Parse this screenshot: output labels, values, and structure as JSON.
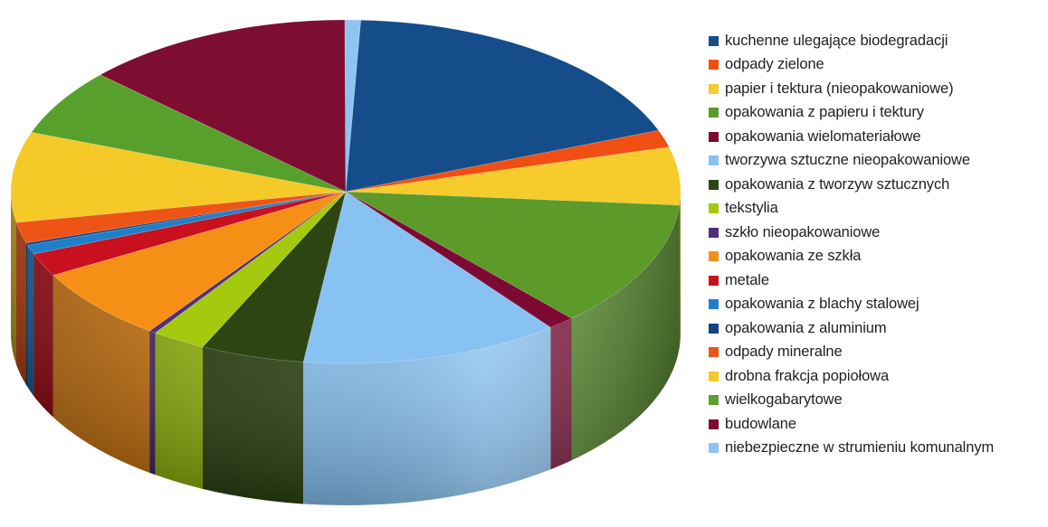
{
  "chart_data": {
    "type": "pie",
    "variant": "3d",
    "title": "",
    "legend_position": "right",
    "categories": [
      "kuchenne ulegające biodegradacji",
      "odpady zielone",
      "papier i tektura (nieopakowaniowe)",
      "opakowania z papieru i tektury",
      "opakowania wielomateriałowe",
      "tworzywa sztuczne nieopakowaniowe",
      "opakowania z tworzyw sztucznych",
      "tekstylia",
      "szkło nieopakowaniowe",
      "opakowania ze szkła",
      "metale",
      "opakowania z blachy stalowej",
      "opakowania z aluminium",
      "odpady mineralne",
      "drobna frakcja popiołowa",
      "wielkogabarytowe",
      "budowlane",
      "niebezpieczne w strumieniu komunalnym"
    ],
    "values": [
      17.0,
      1.5,
      5.0,
      11.0,
      1.2,
      11.5,
      4.6,
      2.4,
      0.3,
      6.4,
      2.0,
      0.8,
      0.2,
      1.8,
      7.8,
      5.8,
      12.0,
      0.7
    ],
    "colors": [
      "#154d8a",
      "#f04e13",
      "#f6cb2c",
      "#5c9a2a",
      "#7c0a33",
      "#87c2f2",
      "#2d4513",
      "#a4c90f",
      "#4f2f7b",
      "#f68f16",
      "#c8101e",
      "#1f7fc9",
      "#0f4682",
      "#ef5417",
      "#f5c928",
      "#58a02c",
      "#7e0d32",
      "#8dc4f2"
    ]
  }
}
